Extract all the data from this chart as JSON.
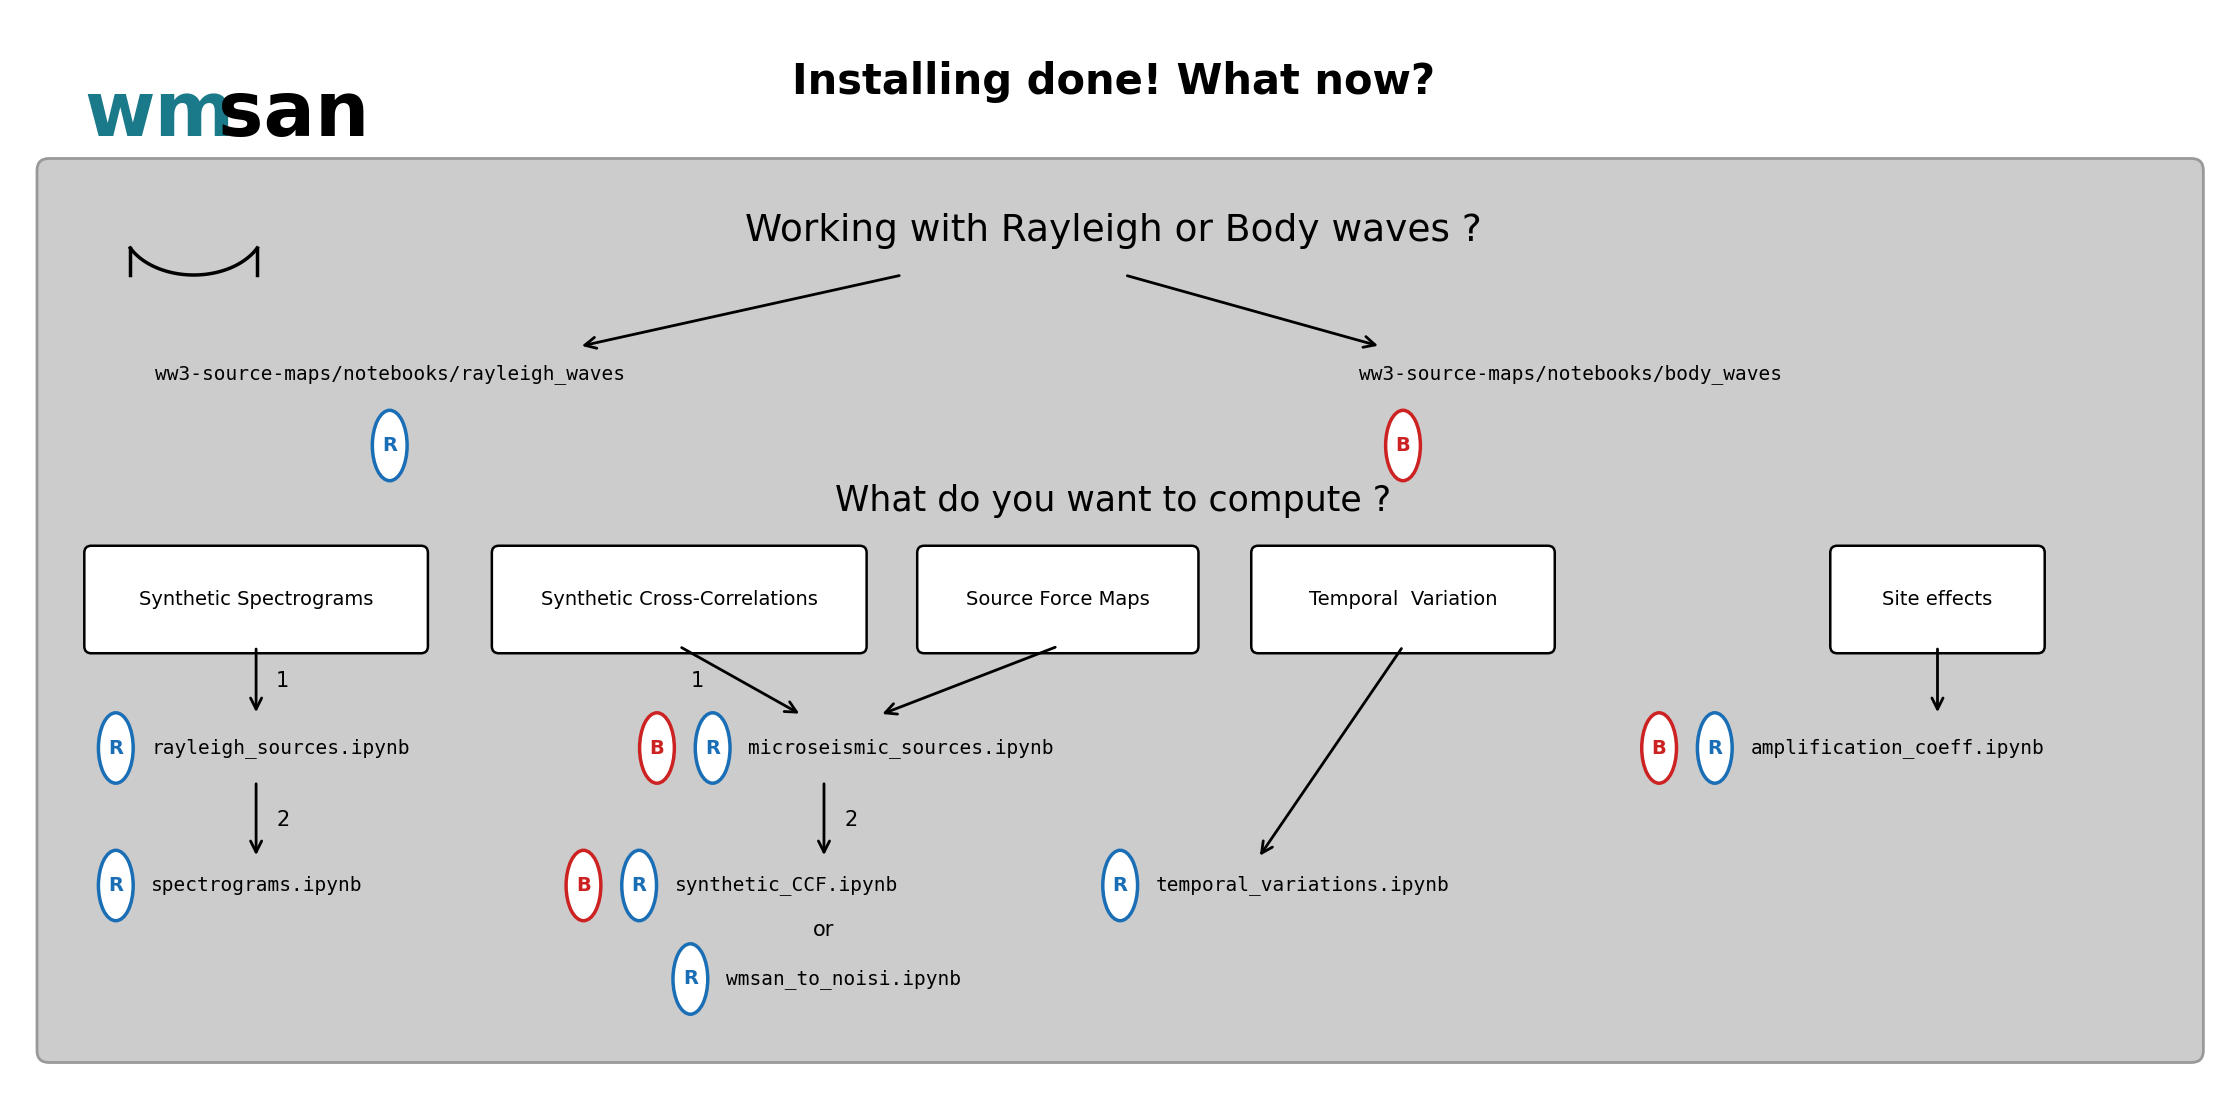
{
  "title": "Installing done! What now?",
  "bg_color": "#cccccc",
  "white_bg": "#ffffff",
  "rayleigh_path": "ww3-source-maps/notebooks/rayleigh_waves",
  "body_path": "ww3-source-maps/notebooks/body_waves",
  "main_question": "Working with Rayleigh or Body waves ?",
  "sub_question": "What do you want to compute ?",
  "R_color": "#1a6eb5",
  "B_color": "#cc2222",
  "figw": 22.27,
  "figh": 11.0
}
